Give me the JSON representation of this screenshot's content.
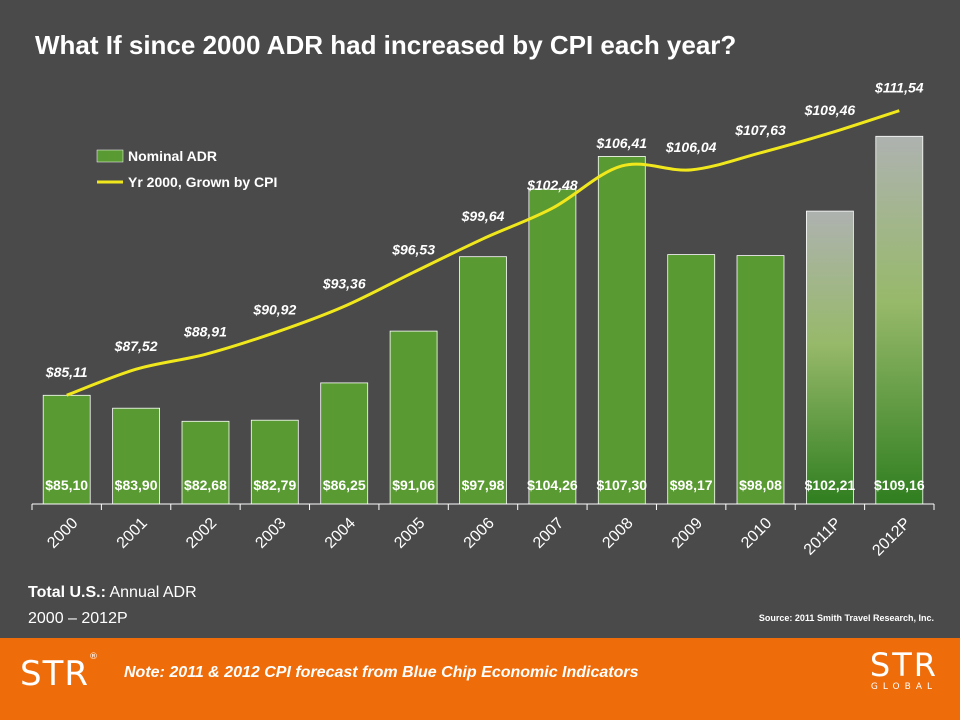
{
  "title": "What If since 2000 ADR had increased by CPI each year?",
  "subtitle": {
    "total_bold": "Total U.S.:",
    "total_rest": " Annual ADR",
    "period": "2000 – 2012P"
  },
  "source": "Source: 2011 Smith Travel Research, Inc.",
  "footer": {
    "note": "Note: 2011 & 2012 CPI forecast from Blue Chip Economic Indicators",
    "logo_left": "STR",
    "logo_right_big": "STR",
    "logo_right_small": "GLOBAL"
  },
  "colors": {
    "bar": "#5a9a32",
    "line": "#f0e81c",
    "projected_top": "#aeb2b0",
    "projected_bottom": "#2f7e1f"
  },
  "chart_data": {
    "type": "bar",
    "categories": [
      "2000",
      "2001",
      "2002",
      "2003",
      "2004",
      "2005",
      "2006",
      "2007",
      "2008",
      "2009",
      "2010",
      "2011P",
      "2012P"
    ],
    "series": [
      {
        "name": "Nominal ADR",
        "type": "bar",
        "values": [
          85.1,
          83.9,
          82.68,
          82.79,
          86.25,
          91.06,
          97.98,
          104.26,
          107.3,
          98.17,
          98.08,
          102.21,
          109.16
        ],
        "labels": [
          "$85,10",
          "$83,90",
          "$82,68",
          "$82,79",
          "$86,25",
          "$91,06",
          "$97,98",
          "$104,26",
          "$107,30",
          "$98,17",
          "$98,08",
          "$102,21",
          "$109,16"
        ]
      },
      {
        "name": "Yr 2000, Grown by CPI",
        "type": "line",
        "values": [
          85.11,
          87.52,
          88.91,
          90.92,
          93.36,
          96.53,
          99.64,
          102.48,
          106.41,
          106.04,
          107.63,
          109.46,
          111.54
        ],
        "labels": [
          "$85,11",
          "$87,52",
          "$88,91",
          "$90,92",
          "$93,36",
          "$96,53",
          "$99,64",
          "$102,48",
          "$106,41",
          "$106,04",
          "$107,63",
          "$109,46",
          "$111,54"
        ]
      }
    ],
    "projected": [
      "2011P",
      "2012P"
    ],
    "ylim": [
      75,
      113
    ],
    "grid": false,
    "legend": "top-left"
  }
}
